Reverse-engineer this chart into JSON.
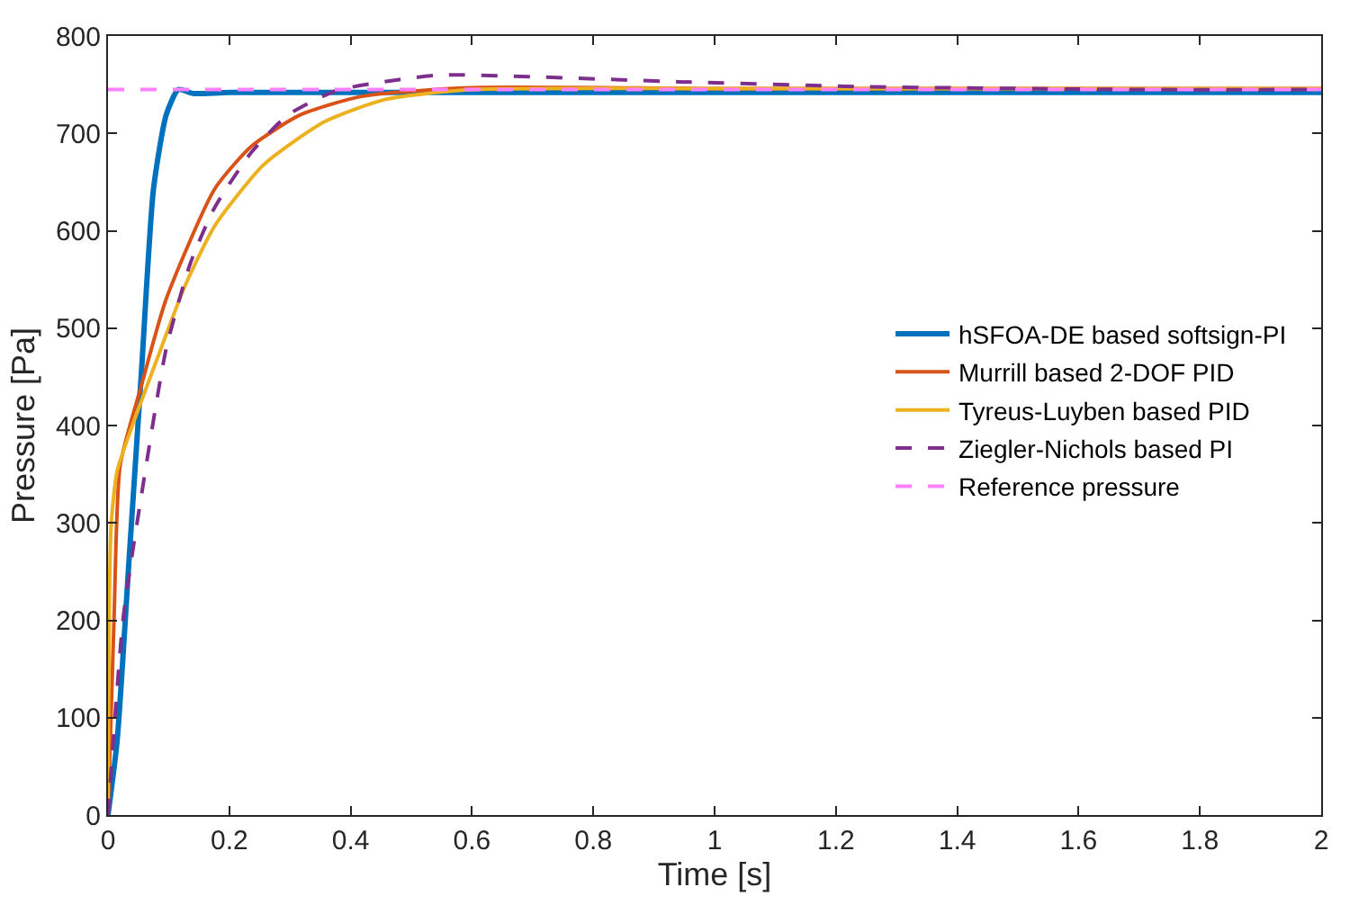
{
  "chart_data": {
    "type": "line",
    "xlabel": "Time [s]",
    "ylabel": "Pressure [Pa]",
    "xlim": [
      0,
      2
    ],
    "xticks": [
      0,
      0.2,
      0.4,
      0.6,
      0.8,
      1,
      1.2,
      1.4,
      1.6,
      1.8,
      2
    ],
    "ylim": [
      0,
      800
    ],
    "yticks": [
      0,
      100,
      200,
      300,
      400,
      500,
      600,
      700,
      800
    ],
    "legend": "right",
    "marker": "none",
    "series": [
      {
        "name": "hSFOA-DE based softsign-PI",
        "color": "#0072bd",
        "line_style": "solid",
        "x": [
          0,
          0.015,
          0.035,
          0.055,
          0.075,
          0.096,
          0.116,
          0.14,
          0.2,
          0.5,
          1,
          1.5,
          2
        ],
        "values": [
          0,
          76,
          265,
          454,
          643,
          719,
          745,
          741,
          742,
          742,
          742,
          742,
          742
        ]
      },
      {
        "name": "Murrill based 2-DOF PID",
        "color": "#d95319",
        "line_style": "solid",
        "x": [
          0,
          0.01,
          0.02,
          0.055,
          0.096,
          0.176,
          0.237,
          0.317,
          0.418,
          0.6,
          1,
          1.5,
          2
        ],
        "values": [
          0,
          202,
          359,
          441,
          530,
          643,
          687,
          719,
          738,
          747,
          746,
          746,
          746
        ]
      },
      {
        "name": "Tyreus-Luyben based PID",
        "color": "#edb120",
        "line_style": "solid",
        "x": [
          0,
          0.005,
          0.015,
          0.035,
          0.076,
          0.126,
          0.176,
          0.257,
          0.357,
          0.458,
          0.6,
          1,
          1.5,
          2
        ],
        "values": [
          0,
          296,
          353,
          391,
          460,
          542,
          605,
          668,
          712,
          735,
          745,
          746,
          746,
          746
        ]
      },
      {
        "name": "Ziegler-Nichols based PI",
        "color": "#7e2f8e",
        "line_style": "dashed",
        "x": [
          0,
          0.025,
          0.055,
          0.096,
          0.136,
          0.176,
          0.237,
          0.297,
          0.377,
          0.478,
          0.55,
          0.94,
          1.24,
          1.7,
          2
        ],
        "values": [
          0,
          202,
          328,
          479,
          567,
          624,
          681,
          719,
          744,
          755,
          760,
          753,
          748,
          745,
          745
        ]
      },
      {
        "name": "Reference pressure",
        "color": "#ff80ff",
        "line_style": "dashed",
        "x": [
          0,
          2
        ],
        "values": [
          745,
          745
        ]
      }
    ]
  }
}
